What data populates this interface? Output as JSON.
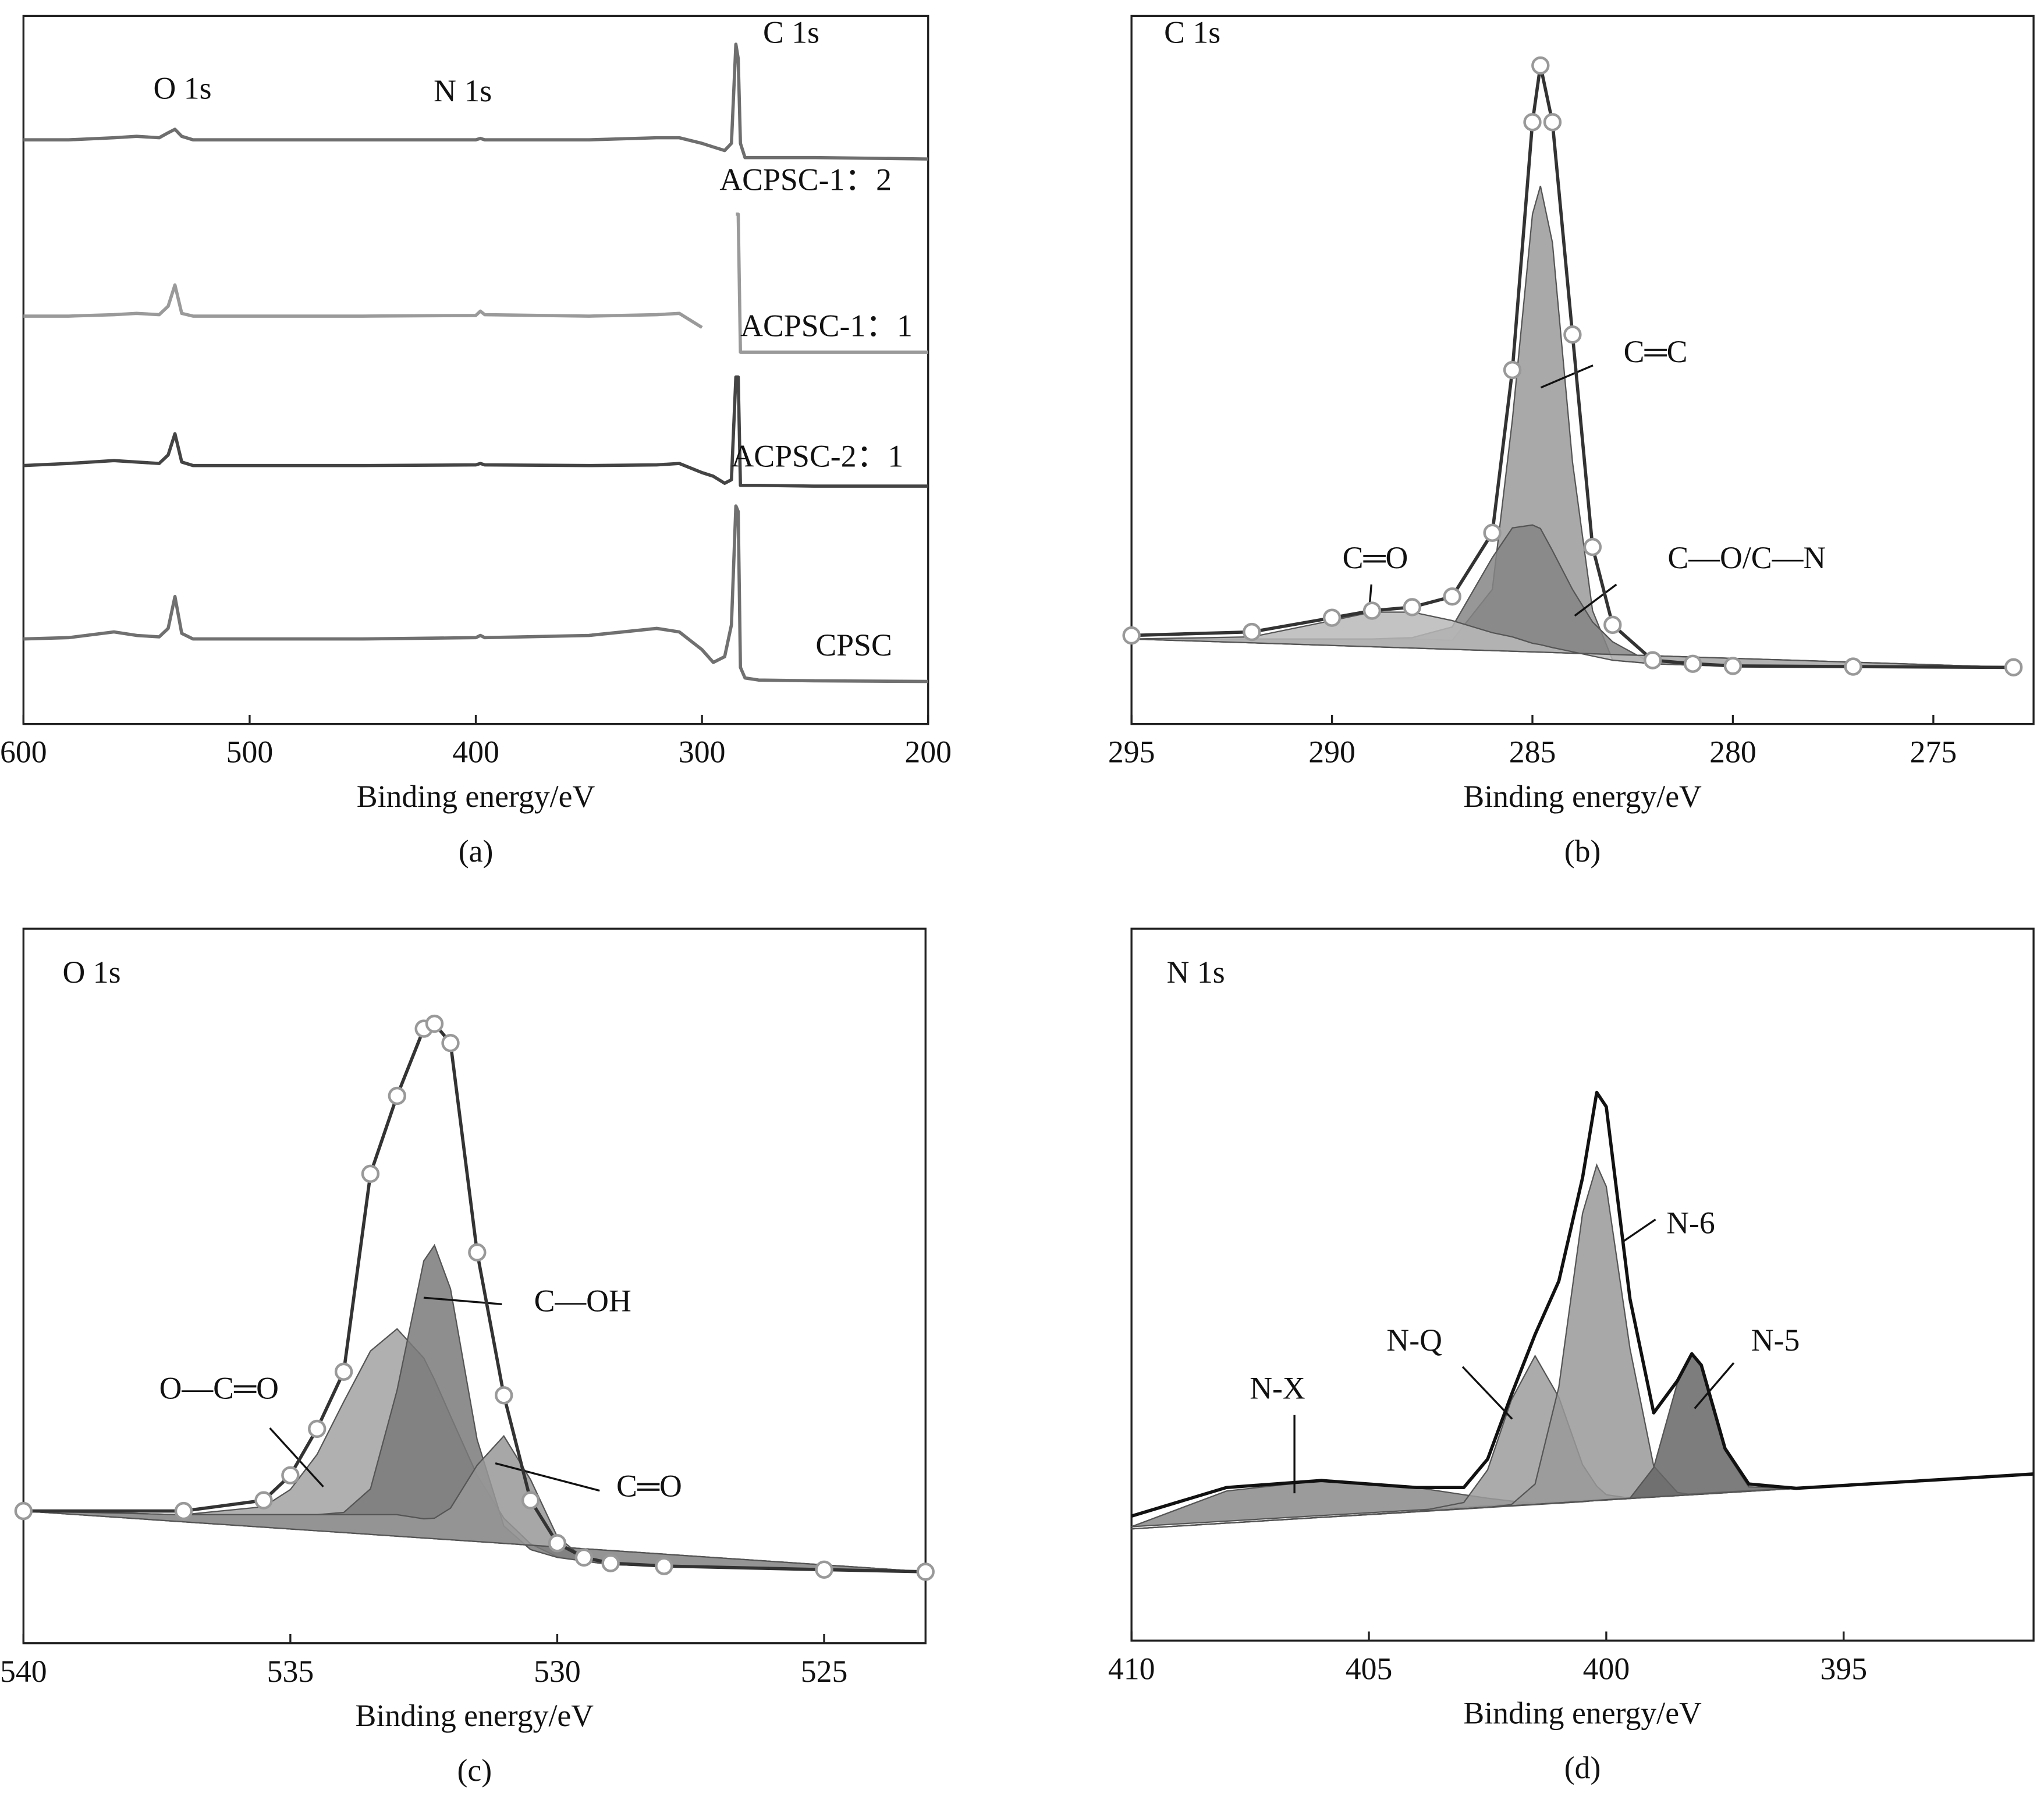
{
  "chart_data": [
    {
      "type": "line",
      "xlabel": "Binding energy/eV",
      "caption": "(a)",
      "annotations": [
        "O 1s",
        "N 1s",
        "C 1s"
      ],
      "x": [
        600,
        580,
        560,
        550,
        540,
        536,
        533,
        530,
        525,
        510,
        500,
        450,
        400,
        398,
        396,
        350,
        320,
        310,
        300,
        295,
        290,
        287,
        285,
        284,
        283,
        281,
        275,
        250,
        200
      ],
      "series": [
        {
          "name": "ACPSC-1：2",
          "color": "#6e6e6e",
          "values": [
            82.5,
            82.5,
            82.8,
            83,
            82.8,
            83.5,
            84,
            83,
            82.5,
            82.5,
            82.5,
            82.5,
            82.5,
            82.7,
            82.5,
            82.5,
            82.8,
            82.8,
            82,
            81.5,
            81,
            82,
            96,
            94,
            82,
            80,
            80,
            80,
            79.8
          ]
        },
        {
          "name": "ACPSC-1：1",
          "color": "#9a9a9a",
          "values": [
            57.6,
            57.6,
            57.8,
            58,
            57.8,
            59,
            62,
            58,
            57.6,
            57.6,
            57.6,
            57.6,
            57.7,
            58.3,
            57.8,
            57.6,
            57.8,
            58,
            56,
            null,
            null,
            null,
            72,
            72,
            52.5,
            52.5,
            52.5,
            52.5,
            52.5
          ]
        },
        {
          "name": "ACPSC-2：1",
          "color": "#444444",
          "values": [
            36.5,
            36.8,
            37.2,
            37,
            36.8,
            38,
            41,
            37,
            36.5,
            36.5,
            36.5,
            36.5,
            36.6,
            36.8,
            36.6,
            36.5,
            36.6,
            36.8,
            35.5,
            35,
            34,
            34.5,
            49,
            49,
            33.7,
            33.7,
            33.7,
            33.6,
            33.6
          ]
        },
        {
          "name": "CPSC",
          "color": "#707070",
          "values": [
            12,
            12.2,
            13,
            12.5,
            12.3,
            13.5,
            18,
            12.8,
            12,
            12,
            12,
            12,
            12.2,
            12.5,
            12.2,
            12.5,
            13.5,
            13,
            10.5,
            8.7,
            9.5,
            14,
            30.8,
            30,
            8,
            6.5,
            6.2,
            6.1,
            6
          ]
        }
      ],
      "xlim": [
        600,
        200
      ],
      "xticks": [
        600,
        500,
        400,
        300,
        200
      ],
      "ylim": [
        0,
        100
      ]
    },
    {
      "type": "line",
      "title": "C 1s",
      "xlabel": "Binding energy/eV",
      "caption": "(b)",
      "x": [
        295,
        292,
        290,
        289,
        288,
        287,
        286,
        285.5,
        285,
        284.8,
        284.5,
        284,
        283.5,
        283,
        282,
        281,
        280,
        277,
        273
      ],
      "series": [
        {
          "name": "C═C",
          "color": "#9a9a9a",
          "fill": true,
          "values": [
            12,
            12,
            12,
            12,
            12,
            11.8,
            19,
            43,
            72,
            76,
            68,
            37,
            16,
            9,
            8.5,
            8.3,
            8.2,
            8.1,
            8
          ]
        },
        {
          "name": "C—O/C—N",
          "color": "#858585",
          "fill": true,
          "values": [
            12,
            12,
            12,
            12,
            12.2,
            13.7,
            23.5,
            27.7,
            28.1,
            27.6,
            24.5,
            19,
            14.4,
            11.6,
            8.5,
            8.3,
            8.2,
            8.1,
            8
          ]
        },
        {
          "name": "C═O",
          "color": "#b8b8b8",
          "fill": true,
          "values": [
            12,
            12.3,
            14.6,
            15.8,
            15.8,
            14.6,
            12.9,
            12.3,
            11.4,
            11.2,
            10.8,
            10.2,
            9.6,
            9,
            8.5,
            8.3,
            8.2,
            8.1,
            8
          ]
        },
        {
          "color": "#333333",
          "marker": "circle",
          "values": [
            12.5,
            13,
            15,
            16,
            16.5,
            18,
            27,
            50,
            85,
            93,
            85,
            55,
            25,
            14,
            9,
            8.5,
            8.2,
            8.1,
            8
          ]
        }
      ],
      "xlim": [
        295,
        272.5
      ],
      "xticks": [
        295,
        290,
        285,
        280,
        275
      ],
      "ylim": [
        0,
        100
      ]
    },
    {
      "type": "line",
      "title": "O 1s",
      "xlabel": "Binding energy/eV",
      "caption": "(c)",
      "x": [
        540,
        537,
        535.5,
        535,
        534.5,
        534,
        533.5,
        533,
        532.5,
        532.3,
        532,
        531.5,
        531,
        530.5,
        530,
        529.5,
        529,
        528,
        525,
        523.1
      ],
      "series": [
        {
          "name": "O—C═O",
          "color": "#a2a2a2",
          "fill": true,
          "values": [
            18.5,
            18,
            19.1,
            21.5,
            26.4,
            33.8,
            40.9,
            44,
            39.9,
            36.9,
            31.8,
            23.5,
            17.5,
            13.9,
            12.1,
            11.5,
            11,
            10.8,
            10.3,
            10
          ]
        },
        {
          "name": "C—OH",
          "color": "#7a7a7a",
          "fill": true,
          "values": [
            18.5,
            18,
            18,
            18,
            18,
            18.3,
            21.6,
            35.4,
            53.5,
            55.7,
            49.6,
            28.5,
            16.4,
            13.1,
            12,
            11.5,
            11,
            10.8,
            10.3,
            10
          ]
        },
        {
          "name": "C═O",
          "color": "#989898",
          "fill": true,
          "values": [
            18.5,
            18,
            18,
            18,
            18,
            18,
            18,
            18,
            17.4,
            17.5,
            18.9,
            24.9,
            29,
            22.9,
            14.9,
            11.9,
            11,
            10.8,
            10.3,
            10
          ]
        },
        {
          "color": "#333333",
          "marker": "circle",
          "values": [
            18.5,
            18.5,
            20,
            23.5,
            30,
            38,
            65.7,
            76.6,
            86,
            86.7,
            84,
            54.7,
            34.7,
            20,
            14,
            12,
            11.2,
            10.8,
            10.3,
            10
          ]
        }
      ],
      "xlim": [
        540,
        523.1
      ],
      "xticks": [
        540,
        535,
        530,
        525
      ],
      "ylim": [
        0,
        100
      ]
    },
    {
      "type": "line",
      "title": "N 1s",
      "xlabel": "Binding energy/eV",
      "caption": "(d)",
      "x": [
        410,
        408,
        406,
        404,
        403,
        402.5,
        402,
        401.5,
        401,
        400.5,
        400.2,
        400,
        399.5,
        399,
        398.5,
        398.2,
        398,
        397.5,
        397,
        396,
        394,
        391
      ],
      "series": [
        {
          "name": "N-X",
          "color": "#8a8a8a",
          "fill": true,
          "values": [
            16,
            21,
            22.5,
            21.5,
            20.5,
            20,
            19.6,
            19.3,
            19.3,
            19.5,
            19.7,
            19.8,
            20,
            20.2,
            20.4,
            20.5,
            20.6,
            20.8,
            21,
            21.4,
            22.2,
            23.4
          ]
        },
        {
          "name": "N-Q",
          "color": "#9c9c9c",
          "fill": true,
          "values": [
            15.7,
            16.5,
            17.3,
            18.1,
            19.4,
            24,
            33.8,
            40,
            34.2,
            24.7,
            21.7,
            20.5,
            20,
            20.2,
            20.4,
            20.5,
            20.6,
            20.8,
            21,
            21.4,
            22.2,
            23.4
          ]
        },
        {
          "name": "N-6",
          "color": "#999999",
          "fill": true,
          "values": [
            15.7,
            16.5,
            17.3,
            18.1,
            18.5,
            18.7,
            19.1,
            22,
            35.6,
            60,
            66.8,
            63.8,
            41,
            24.5,
            20.8,
            20.5,
            20.6,
            20.8,
            21,
            21.4,
            22.2,
            23.4
          ]
        },
        {
          "name": "N-5",
          "color": "#666666",
          "fill": true,
          "values": [
            15.7,
            16.5,
            17.3,
            18.1,
            18.5,
            18.7,
            18.9,
            19.1,
            19.3,
            19.5,
            19.7,
            19.8,
            20,
            24.3,
            36.2,
            40.3,
            38.5,
            26.7,
            21.6,
            21.4,
            22.2,
            23.4
          ]
        },
        {
          "color": "#111111",
          "values": [
            17.5,
            21.5,
            22.5,
            21.5,
            21.5,
            25.5,
            34.5,
            43,
            50.5,
            65,
            77,
            75,
            48,
            32,
            36.5,
            40.3,
            38.7,
            27,
            22,
            21.4,
            22.2,
            23.4
          ]
        }
      ],
      "xlim": [
        410,
        391
      ],
      "xticks": [
        410,
        405,
        400,
        395
      ],
      "ylim": [
        0,
        100
      ]
    }
  ]
}
